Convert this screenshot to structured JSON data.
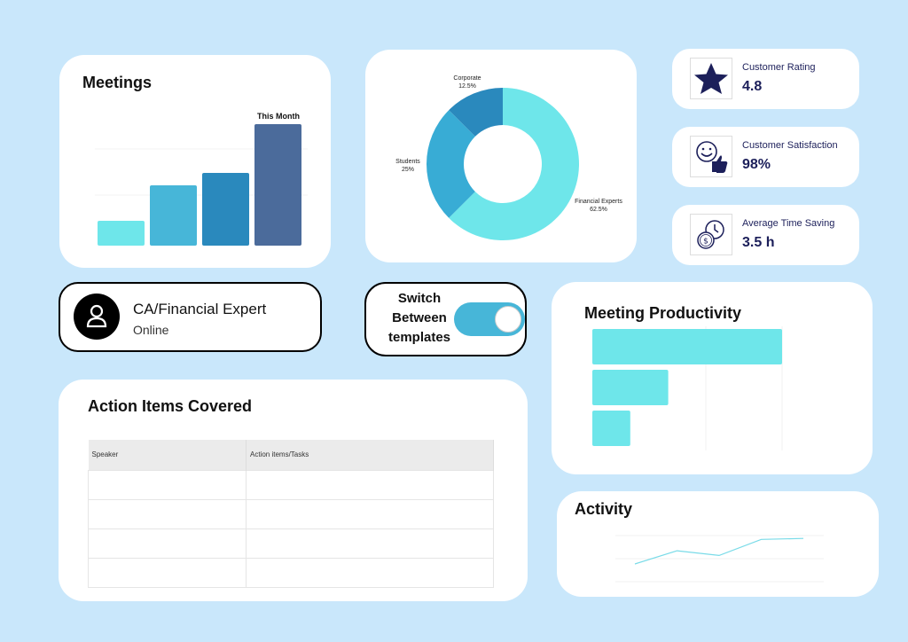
{
  "meetings": {
    "title": "Meetings",
    "highlight_label": "This Month",
    "bars": [
      {
        "value": 28,
        "color": "#6ee6ea"
      },
      {
        "value": 68,
        "color": "#47b6d8"
      },
      {
        "value": 82,
        "color": "#2a89bd"
      },
      {
        "value": 137,
        "color": "#4b6b9b"
      }
    ]
  },
  "donut": {
    "slices": [
      {
        "label": "Financial Experts",
        "pct": "62.5%",
        "value": 62.5,
        "color": "#6ee6ea"
      },
      {
        "label": "Students",
        "pct": "25%",
        "value": 25,
        "color": "#38acd5"
      },
      {
        "label": "Corporate",
        "pct": "12.5%",
        "value": 12.5,
        "color": "#2a89bd"
      }
    ]
  },
  "stats": [
    {
      "label": "Customer Rating",
      "value": "4.8",
      "icon": "star-icon"
    },
    {
      "label": "Customer Satisfaction",
      "value": "98%",
      "icon": "thumbs-up-smiley-icon"
    },
    {
      "label": "Average Time Saving",
      "value": "3.5 h",
      "icon": "time-money-icon"
    }
  ],
  "expert": {
    "name": "CA/Financial Expert",
    "status": "Online"
  },
  "switch": {
    "label": "Switch Between templates",
    "on": true
  },
  "productivity": {
    "title": "Meeting Productivity",
    "bars": [
      {
        "value": 100
      },
      {
        "value": 40
      },
      {
        "value": 20
      }
    ],
    "color": "#6ee6ea"
  },
  "actions": {
    "title": "Action Items Covered",
    "columns": [
      "Speaker",
      "Action items/Tasks"
    ],
    "rows": 4
  },
  "activity": {
    "title": "Activity",
    "points": [
      0,
      1.4,
      0.9,
      2.6,
      2.7
    ],
    "color": "#79dbe8"
  }
}
